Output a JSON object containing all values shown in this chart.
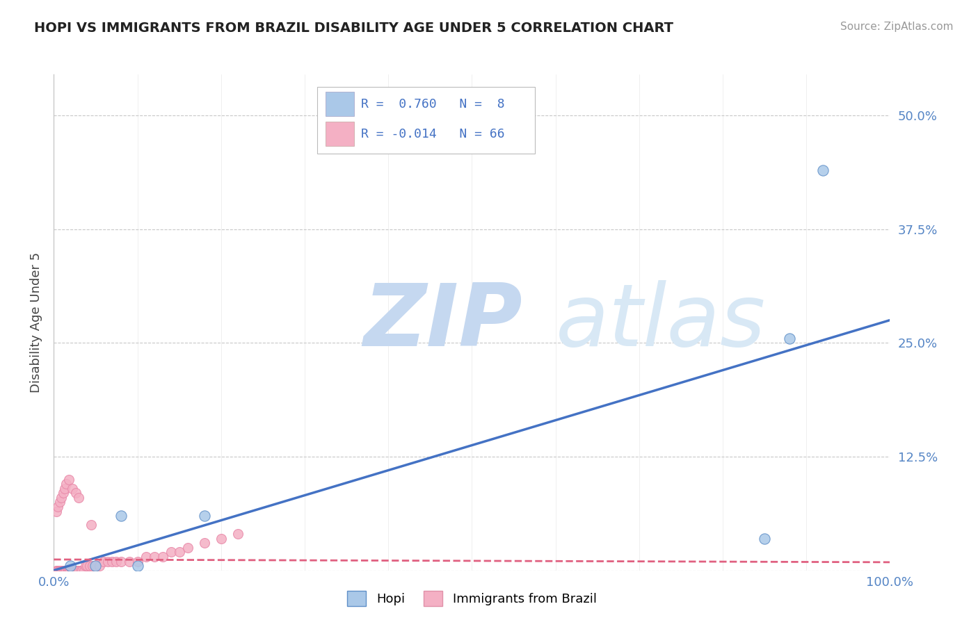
{
  "title": "HOPI VS IMMIGRANTS FROM BRAZIL DISABILITY AGE UNDER 5 CORRELATION CHART",
  "source": "Source: ZipAtlas.com",
  "ylabel": "Disability Age Under 5",
  "xlim": [
    0.0,
    1.0
  ],
  "ylim": [
    0.0,
    0.545
  ],
  "yticks": [
    0.0,
    0.125,
    0.25,
    0.375,
    0.5
  ],
  "ytick_labels": [
    "",
    "12.5%",
    "25.0%",
    "37.5%",
    "50.0%"
  ],
  "xtick_labels": [
    "0.0%",
    "100.0%"
  ],
  "hopi_R": 0.76,
  "hopi_N": 8,
  "brazil_R": -0.014,
  "brazil_N": 66,
  "hopi_color": "#aac8e8",
  "hopi_line_color": "#4472c4",
  "brazil_color": "#f4b0c4",
  "brazil_line_color": "#e06080",
  "background_color": "#ffffff",
  "watermark_color": "#dce8f5",
  "grid_color": "#c8c8c8",
  "hopi_points_x": [
    0.02,
    0.05,
    0.08,
    0.1,
    0.18,
    0.85,
    0.88,
    0.92
  ],
  "hopi_points_y": [
    0.005,
    0.005,
    0.06,
    0.005,
    0.06,
    0.035,
    0.255,
    0.44
  ],
  "brazil_points_x": [
    0.003,
    0.004,
    0.005,
    0.006,
    0.007,
    0.007,
    0.008,
    0.008,
    0.009,
    0.01,
    0.01,
    0.011,
    0.012,
    0.013,
    0.014,
    0.015,
    0.015,
    0.016,
    0.017,
    0.018,
    0.019,
    0.02,
    0.021,
    0.022,
    0.023,
    0.025,
    0.026,
    0.028,
    0.03,
    0.032,
    0.034,
    0.036,
    0.038,
    0.04,
    0.043,
    0.046,
    0.05,
    0.055,
    0.06,
    0.065,
    0.07,
    0.075,
    0.08,
    0.09,
    0.1,
    0.11,
    0.12,
    0.13,
    0.14,
    0.15,
    0.16,
    0.18,
    0.2,
    0.22,
    0.003,
    0.005,
    0.007,
    0.009,
    0.011,
    0.013,
    0.015,
    0.018,
    0.022,
    0.026,
    0.03,
    0.045
  ],
  "brazil_points_y": [
    0.0,
    0.0,
    0.0,
    0.0,
    0.0,
    0.0,
    0.0,
    0.0,
    0.0,
    0.0,
    0.0,
    0.0,
    0.0,
    0.0,
    0.0,
    0.0,
    0.0,
    0.0,
    0.0,
    0.0,
    0.0,
    0.0,
    0.0,
    0.0,
    0.0,
    0.0,
    0.0,
    0.0,
    0.0,
    0.0,
    0.0,
    0.0,
    0.005,
    0.005,
    0.005,
    0.005,
    0.005,
    0.005,
    0.01,
    0.01,
    0.01,
    0.01,
    0.01,
    0.01,
    0.01,
    0.015,
    0.015,
    0.015,
    0.02,
    0.02,
    0.025,
    0.03,
    0.035,
    0.04,
    0.065,
    0.07,
    0.075,
    0.08,
    0.085,
    0.09,
    0.095,
    0.1,
    0.09,
    0.085,
    0.08,
    0.05
  ],
  "hopi_line_x": [
    0.0,
    1.0
  ],
  "hopi_line_y": [
    0.0,
    0.275
  ],
  "brazil_line_x": [
    0.0,
    1.0
  ],
  "brazil_line_y": [
    0.012,
    0.009
  ]
}
